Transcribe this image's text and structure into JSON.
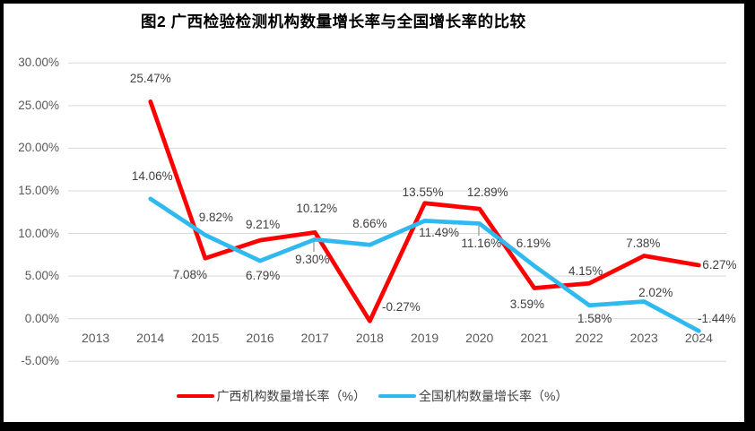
{
  "chart_data": {
    "type": "line",
    "title": "图2 广西检验检测机构数量增长率与全国增长率的比较",
    "categories": [
      "2013",
      "2014",
      "2015",
      "2016",
      "2017",
      "2018",
      "2019",
      "2020",
      "2021",
      "2022",
      "2023",
      "2024"
    ],
    "series": [
      {
        "name": "广西机构数量增长率（%）",
        "color": "#FE0000",
        "values": [
          null,
          25.47,
          7.08,
          9.21,
          10.12,
          -0.27,
          13.55,
          12.89,
          3.59,
          4.15,
          7.38,
          6.27
        ],
        "labels": [
          null,
          "25.47%",
          "7.08%",
          "9.21%",
          "10.12%",
          "-0.27%",
          "13.55%",
          "12.89%",
          "3.59%",
          "4.15%",
          "7.38%",
          "6.27%"
        ]
      },
      {
        "name": "全国机构数量增长率（%）",
        "color": "#2FB9EE",
        "values": [
          null,
          14.06,
          9.82,
          6.79,
          9.3,
          8.66,
          11.49,
          11.16,
          6.19,
          1.58,
          2.02,
          -1.44
        ],
        "labels": [
          null,
          "14.06%",
          "9.82%",
          "6.79%",
          "9.30%",
          "8.66%",
          "11.49%",
          "11.16%",
          "6.19%",
          "1.58%",
          "2.02%",
          "-1.44%"
        ]
      }
    ],
    "yticks": [
      {
        "value": 30,
        "label": "30.00%"
      },
      {
        "value": 25,
        "label": "25.00%"
      },
      {
        "value": 20,
        "label": "20.00%"
      },
      {
        "value": 15,
        "label": "15.00%"
      },
      {
        "value": 10,
        "label": "10.00%"
      },
      {
        "value": 5,
        "label": "5.00%"
      },
      {
        "value": 0,
        "label": "0.00%"
      },
      {
        "value": -5,
        "label": "-5.00%"
      }
    ],
    "ylim": [
      -5,
      30
    ],
    "grid": true,
    "legend_position": "bottom",
    "colors": {
      "gridline": "#D9D9D9",
      "leader_line": "#A6A6A6",
      "axis_text": "#595959",
      "data_label_text": "#404040",
      "title_text": "#000000",
      "frame_border": "#000000"
    }
  }
}
